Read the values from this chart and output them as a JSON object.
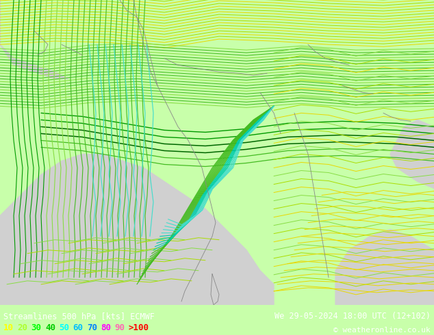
{
  "title_left": "Streamlines 500 hPa [kts] ECMWF",
  "title_right": "We 29-05-2024 18:00 UTC (12+102)",
  "copyright": "© weatheronline.co.uk",
  "legend_values": [
    "10",
    "20",
    "30",
    "40",
    "50",
    "60",
    "70",
    "80",
    "90",
    ">100"
  ],
  "legend_colors": [
    "#ffff00",
    "#adff2f",
    "#00ff00",
    "#00cc00",
    "#00ffff",
    "#00bfff",
    "#0080ff",
    "#ff00ff",
    "#ff69b4",
    "#ff0000"
  ],
  "bg_color": "#c8ffaa",
  "map_bg": "#c8ffaa",
  "bottom_bg": "#000000",
  "figsize": [
    6.34,
    4.9
  ],
  "dpi": 100
}
